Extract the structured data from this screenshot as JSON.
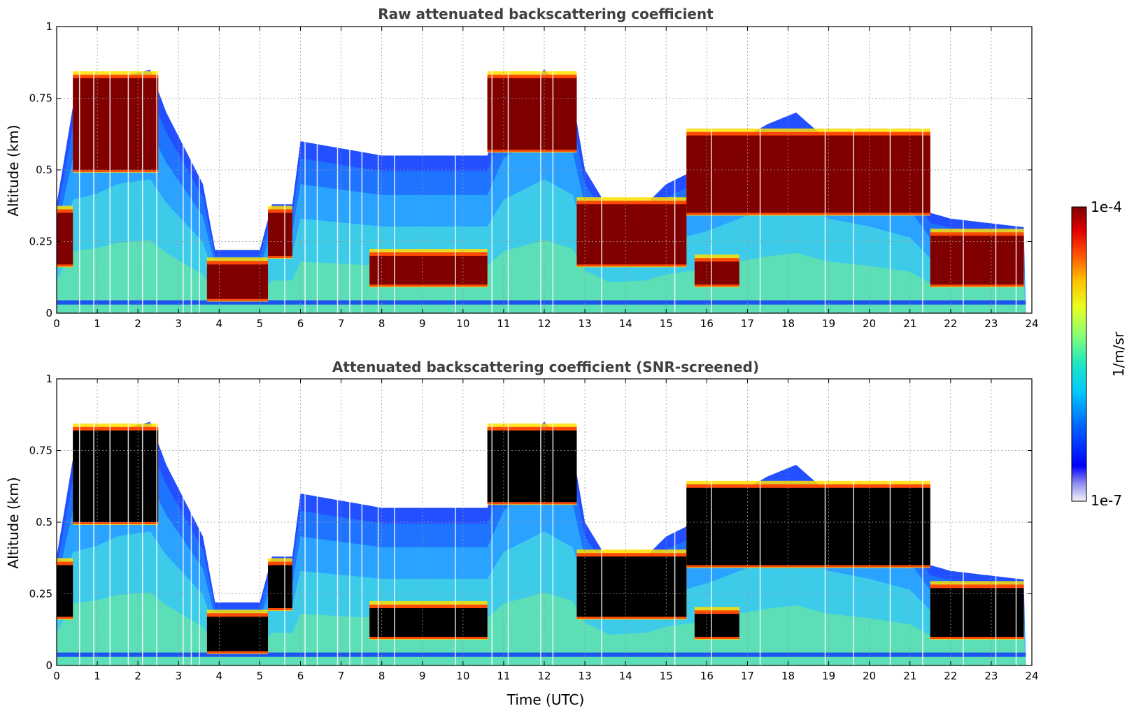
{
  "chart_data": [
    {
      "type": "heatmap",
      "id": "raw",
      "title": "Raw attenuated backscattering coefficient",
      "xlabel": "",
      "ylabel": "Altitude (km)",
      "xlim": [
        0,
        24
      ],
      "ylim": [
        0,
        1
      ],
      "xticks": [
        "0",
        "1",
        "2",
        "3",
        "4",
        "5",
        "6",
        "7",
        "8",
        "9",
        "10",
        "11",
        "12",
        "13",
        "14",
        "15",
        "16",
        "17",
        "18",
        "19",
        "20",
        "21",
        "22",
        "23",
        "24"
      ],
      "yticks": [
        "0",
        "0.25",
        "0.5",
        "0.75",
        "1"
      ],
      "grid": true,
      "saturation_color": "#800000",
      "boundary_layer_top_km": [
        [
          0.0,
          0.38
        ],
        [
          0.4,
          0.72
        ],
        [
          1.0,
          0.76
        ],
        [
          1.5,
          0.82
        ],
        [
          2.3,
          0.85
        ],
        [
          2.7,
          0.7
        ],
        [
          3.6,
          0.45
        ],
        [
          3.9,
          0.22
        ],
        [
          5.0,
          0.22
        ],
        [
          5.3,
          0.38
        ],
        [
          5.8,
          0.38
        ],
        [
          6.0,
          0.6
        ],
        [
          8.0,
          0.55
        ],
        [
          10.6,
          0.55
        ],
        [
          11.0,
          0.72
        ],
        [
          12.0,
          0.85
        ],
        [
          12.7,
          0.75
        ],
        [
          13.0,
          0.5
        ],
        [
          13.6,
          0.36
        ],
        [
          14.5,
          0.38
        ],
        [
          15.0,
          0.45
        ],
        [
          16.0,
          0.52
        ],
        [
          17.0,
          0.62
        ],
        [
          17.5,
          0.66
        ],
        [
          18.2,
          0.7
        ],
        [
          19.0,
          0.6
        ],
        [
          20.0,
          0.55
        ],
        [
          21.0,
          0.48
        ],
        [
          21.5,
          0.35
        ],
        [
          22.0,
          0.33
        ],
        [
          23.8,
          0.3
        ]
      ],
      "cloud_layers": [
        {
          "t_start": 0.0,
          "t_end": 0.4,
          "base_km": 0.17,
          "top_km": 0.35
        },
        {
          "t_start": 0.4,
          "t_end": 2.5,
          "base_km": 0.5,
          "top_km": 0.82
        },
        {
          "t_start": 3.7,
          "t_end": 5.2,
          "base_km": 0.05,
          "top_km": 0.17
        },
        {
          "t_start": 5.2,
          "t_end": 5.8,
          "base_km": 0.2,
          "top_km": 0.35
        },
        {
          "t_start": 7.7,
          "t_end": 10.6,
          "base_km": 0.1,
          "top_km": 0.2
        },
        {
          "t_start": 10.6,
          "t_end": 12.8,
          "base_km": 0.57,
          "top_km": 0.82
        },
        {
          "t_start": 12.8,
          "t_end": 15.5,
          "base_km": 0.17,
          "top_km": 0.38
        },
        {
          "t_start": 15.7,
          "t_end": 16.8,
          "base_km": 0.1,
          "top_km": 0.18
        },
        {
          "t_start": 15.5,
          "t_end": 21.5,
          "base_km": 0.35,
          "top_km": 0.62
        },
        {
          "t_start": 21.5,
          "t_end": 23.8,
          "base_km": 0.1,
          "top_km": 0.27
        }
      ]
    },
    {
      "type": "heatmap",
      "id": "screened",
      "title": "Attenuated backscattering coefficient (SNR-screened)",
      "xlabel": "Time (UTC)",
      "ylabel": "Altitude (km)",
      "xlim": [
        0,
        24
      ],
      "ylim": [
        0,
        1
      ],
      "xticks": [
        "0",
        "1",
        "2",
        "3",
        "4",
        "5",
        "6",
        "7",
        "8",
        "9",
        "10",
        "11",
        "12",
        "13",
        "14",
        "15",
        "16",
        "17",
        "18",
        "19",
        "20",
        "21",
        "22",
        "23",
        "24"
      ],
      "yticks": [
        "0",
        "0.25",
        "0.5",
        "0.75",
        "1"
      ],
      "grid": true,
      "saturation_color": "#000000",
      "same_cloud_layers_as": "raw"
    }
  ],
  "colorbar": {
    "label": "1/m/sr",
    "max_label": "1e-4",
    "min_label": "1e-7",
    "placement": "right",
    "colormap": "jet"
  }
}
